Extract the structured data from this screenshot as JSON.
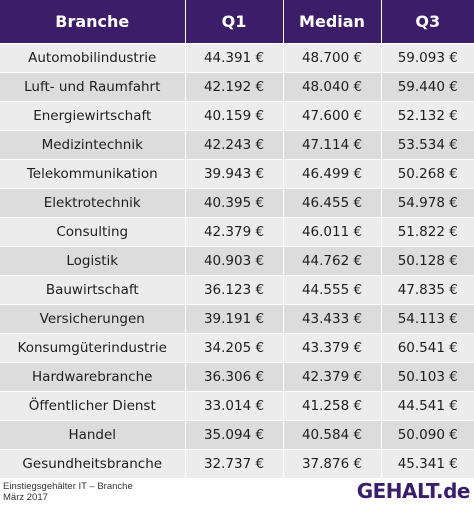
{
  "colors": {
    "header_bg": "#3b1d6a",
    "header_text": "#ffffff",
    "row_light": "#ececec",
    "row_dark": "#dcdcdc",
    "brand": "#3b1d6a"
  },
  "table": {
    "headers": [
      "Branche",
      "Q1",
      "Median",
      "Q3"
    ],
    "rows": [
      [
        "Automobilindustrie",
        "44.391 €",
        "48.700 €",
        "59.093 €"
      ],
      [
        "Luft- und Raumfahrt",
        "42.192 €",
        "48.040 €",
        "59.440 €"
      ],
      [
        "Energiewirtschaft",
        "40.159 €",
        "47.600 €",
        "52.132 €"
      ],
      [
        "Medizintechnik",
        "42.243 €",
        "47.114 €",
        "53.534 €"
      ],
      [
        "Telekommunikation",
        "39.943 €",
        "46.499 €",
        "50.268 €"
      ],
      [
        "Elektrotechnik",
        "40.395 €",
        "46.455 €",
        "54.978 €"
      ],
      [
        "Consulting",
        "42.379 €",
        "46.011 €",
        "51.822 €"
      ],
      [
        "Logistik",
        "40.903 €",
        "44.762 €",
        "50.128 €"
      ],
      [
        "Bauwirtschaft",
        "36.123 €",
        "44.555 €",
        "47.835 €"
      ],
      [
        "Versicherungen",
        "39.191 €",
        "43.433 €",
        "54.113 €"
      ],
      [
        "Konsumgüterindustrie",
        "34.205 €",
        "43.379 €",
        "60.541 €"
      ],
      [
        "Hardwarebranche",
        "36.306 €",
        "42.379 €",
        "50.103 €"
      ],
      [
        "Öffentlicher Dienst",
        "33.014 €",
        "41.258 €",
        "44.541 €"
      ],
      [
        "Handel",
        "35.094 €",
        "40.584 €",
        "50.090 €"
      ],
      [
        "Gesundheitsbranche",
        "32.737 €",
        "37.876 €",
        "45.341 €"
      ]
    ]
  },
  "footer": {
    "caption_line1": "Einstiegsgehälter IT – Branche",
    "caption_line2": "März 2017",
    "brand": "GEHALT.de"
  }
}
